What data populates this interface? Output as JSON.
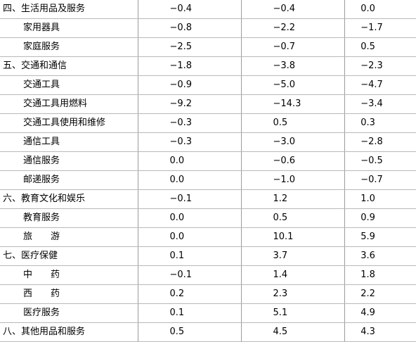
{
  "rows": [
    {
      "label": "四、生活用品及服务",
      "level": 0,
      "values": [
        "−0.4",
        "−0.4",
        "0.0"
      ]
    },
    {
      "label": "家用器具",
      "level": 1,
      "values": [
        "−0.8",
        "−2.2",
        "−1.7"
      ]
    },
    {
      "label": "家庭服务",
      "level": 1,
      "values": [
        "−2.5",
        "−0.7",
        "0.5"
      ]
    },
    {
      "label": "五、交通和通信",
      "level": 0,
      "values": [
        "−1.8",
        "−3.8",
        "−2.3"
      ]
    },
    {
      "label": "交通工具",
      "level": 1,
      "values": [
        "−0.9",
        "−5.0",
        "−4.7"
      ]
    },
    {
      "label": "交通工具用燃料",
      "level": 1,
      "values": [
        "−9.2",
        "−14.3",
        "−3.4"
      ]
    },
    {
      "label": "交通工具使用和维修",
      "level": 1,
      "values": [
        "−0.3",
        "0.5",
        "0.3"
      ]
    },
    {
      "label": "通信工具",
      "level": 1,
      "values": [
        "−0.3",
        "−3.0",
        "−2.8"
      ]
    },
    {
      "label": "通信服务",
      "level": 1,
      "values": [
        "0.0",
        "−0.6",
        "−0.5"
      ]
    },
    {
      "label": "邮递服务",
      "level": 1,
      "values": [
        "0.0",
        "−1.0",
        "−0.7"
      ]
    },
    {
      "label": "六、教育文化和娱乐",
      "level": 0,
      "values": [
        "−0.1",
        "1.2",
        "1.0"
      ]
    },
    {
      "label": "教育服务",
      "level": 1,
      "values": [
        "0.0",
        "0.5",
        "0.9"
      ]
    },
    {
      "label": "旅　　游",
      "level": 1,
      "values": [
        "0.0",
        "10.1",
        "5.9"
      ]
    },
    {
      "label": "七、医疗保健",
      "level": 0,
      "values": [
        "0.1",
        "3.7",
        "3.6"
      ]
    },
    {
      "label": "中　　药",
      "level": 1,
      "values": [
        "−0.1",
        "1.4",
        "1.8"
      ]
    },
    {
      "label": "西　　药",
      "level": 1,
      "values": [
        "0.2",
        "2.3",
        "2.2"
      ]
    },
    {
      "label": "医疗服务",
      "level": 1,
      "values": [
        "0.1",
        "5.1",
        "4.9"
      ]
    },
    {
      "label": "八、其他用品和服务",
      "level": 0,
      "values": [
        "0.5",
        "4.5",
        "4.3"
      ]
    }
  ]
}
